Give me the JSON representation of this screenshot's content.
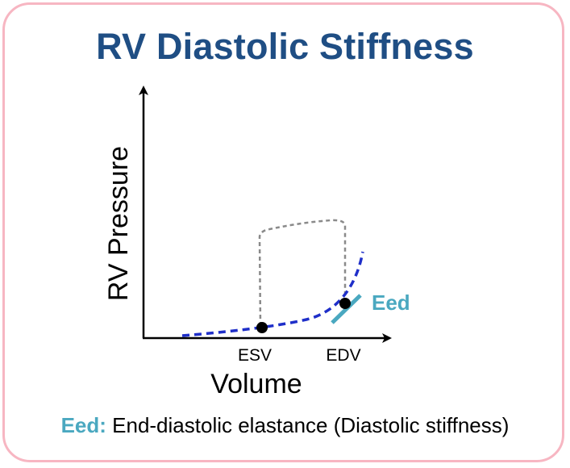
{
  "title": "RV Diastolic Stiffness",
  "axes": {
    "y_label": "RV Pressure",
    "x_label": "Volume"
  },
  "markers": {
    "esv_label": "ESV",
    "edv_label": "EDV"
  },
  "eed_line_label": "Eed",
  "footnote": {
    "term": "Eed:",
    "definition": "End-diastolic elastance (Diastolic stiffness)"
  },
  "colors": {
    "title": "#1f4e84",
    "edpvr_curve": "#1f2fc9",
    "pv_loop": "#8a8a8a",
    "eed_line": "#4aa8c0",
    "border": "#f7b6c2"
  }
}
